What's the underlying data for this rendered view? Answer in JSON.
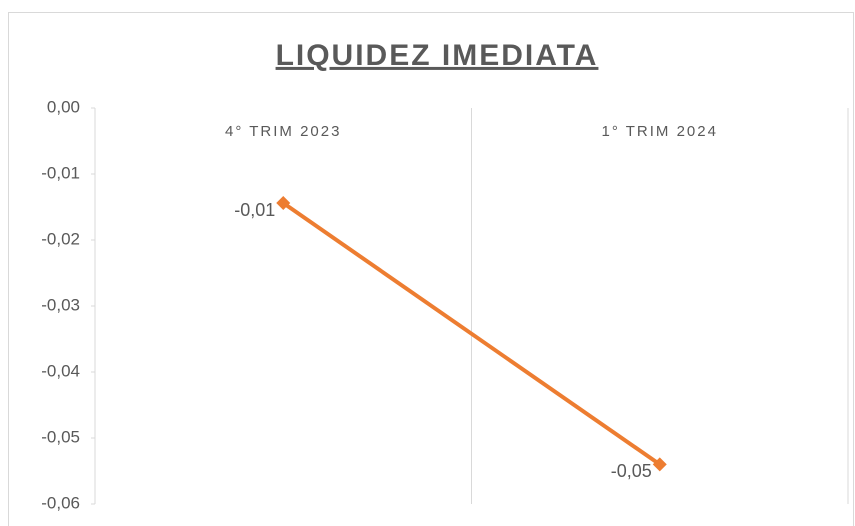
{
  "chart_data": {
    "type": "line",
    "title": "LIQUIDEZ IMEDIATA",
    "categories": [
      "4° TRIM 2023",
      "1° TRIM 2024"
    ],
    "series": [
      {
        "name": "Liquidez Imediata",
        "color": "#ed7d31",
        "values": [
          -0.0144,
          -0.054
        ],
        "value_labels": [
          "-0,01",
          "-0,05"
        ]
      }
    ],
    "ylim": [
      -0.06,
      0
    ],
    "yticks": [
      {
        "value": 0,
        "label": "0,00"
      },
      {
        "value": -0.01,
        "label": "-0,01"
      },
      {
        "value": -0.02,
        "label": "-0,02"
      },
      {
        "value": -0.03,
        "label": "-0,03"
      },
      {
        "value": -0.04,
        "label": "-0,04"
      },
      {
        "value": -0.05,
        "label": "-0,05"
      },
      {
        "value": -0.06,
        "label": "-0,06"
      }
    ],
    "x_axis_position": "top"
  }
}
